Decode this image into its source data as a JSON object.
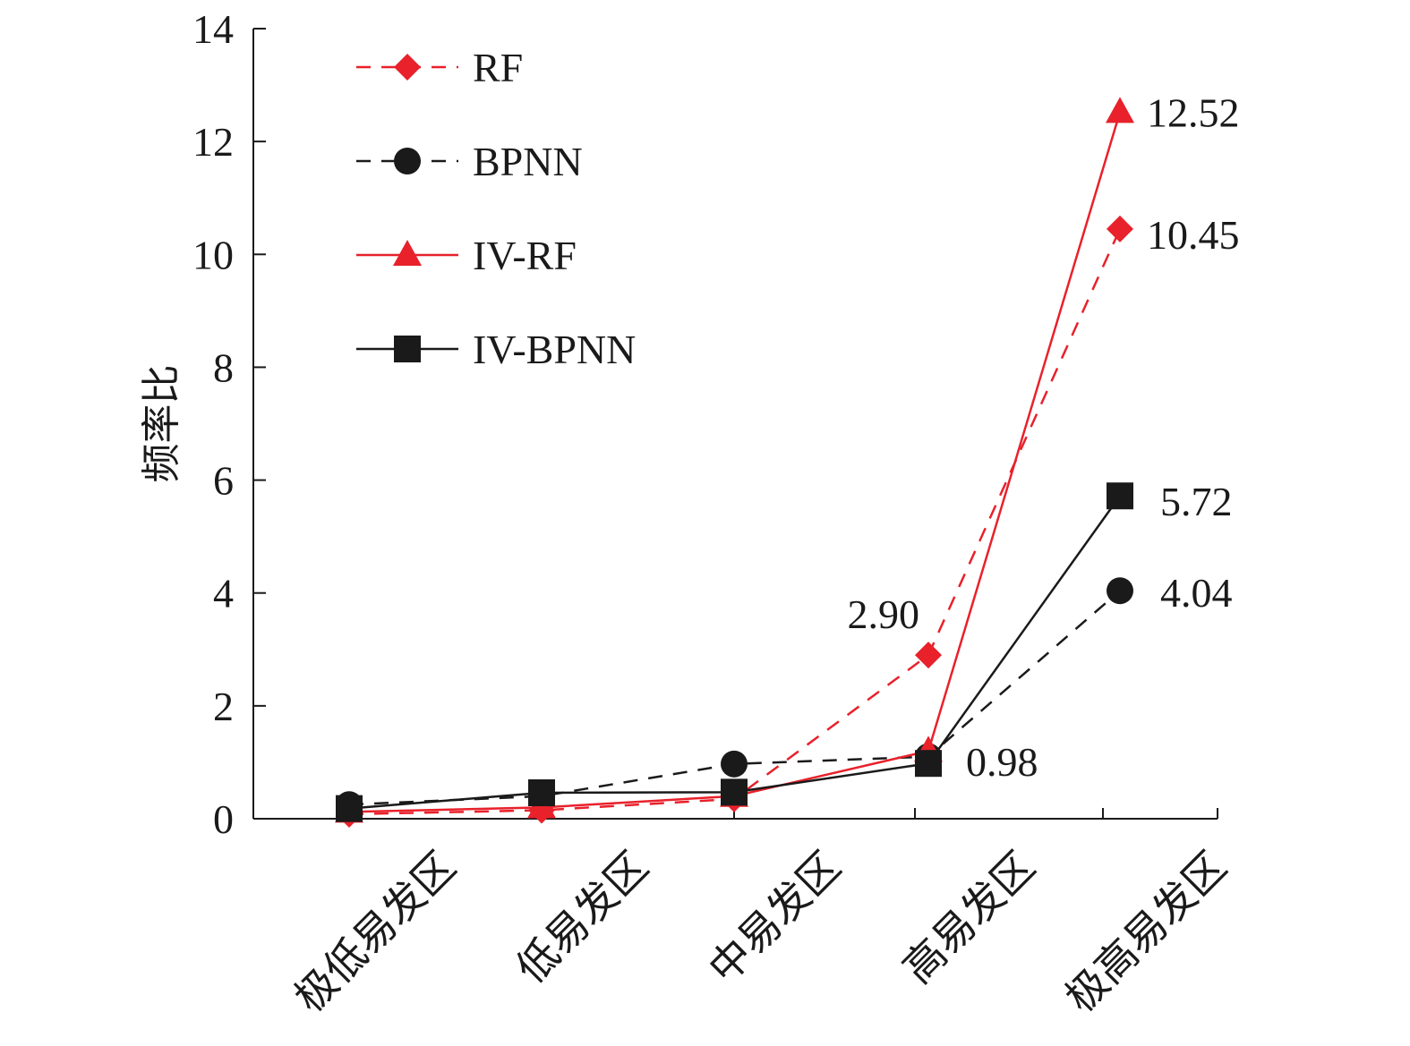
{
  "chart_data": {
    "type": "line",
    "title": "",
    "xlabel": "",
    "ylabel": "频率比",
    "ylim": [
      0,
      14
    ],
    "yticks": [
      0,
      2,
      4,
      6,
      8,
      10,
      12,
      14
    ],
    "categories": [
      "极低易发区",
      "低易发区",
      "中易发区",
      "高易发区",
      "极高易发区"
    ],
    "grid": false,
    "legend_position": "top-left",
    "series": [
      {
        "name": "RF",
        "values": [
          0.08,
          0.15,
          0.35,
          2.9,
          10.45
        ],
        "color": "#e8212b",
        "line_style": "dashed",
        "marker": "diamond"
      },
      {
        "name": "BPNN",
        "values": [
          0.25,
          0.4,
          0.97,
          1.1,
          4.04
        ],
        "color": "#1a1a1a",
        "line_style": "dashed",
        "marker": "circle"
      },
      {
        "name": "IV-RF",
        "values": [
          0.12,
          0.2,
          0.4,
          1.2,
          12.52
        ],
        "color": "#e8212b",
        "line_style": "solid",
        "marker": "triangle"
      },
      {
        "name": "IV-BPNN",
        "values": [
          0.18,
          0.46,
          0.47,
          0.98,
          5.72
        ],
        "color": "#1a1a1a",
        "line_style": "solid",
        "marker": "square"
      }
    ],
    "annotations": [
      {
        "text": "2.90",
        "series": "RF",
        "index": 3
      },
      {
        "text": "12.52",
        "series": "IV-RF",
        "index": 4
      },
      {
        "text": "10.45",
        "series": "RF",
        "index": 4
      },
      {
        "text": "5.72",
        "series": "IV-BPNN",
        "index": 4
      },
      {
        "text": "4.04",
        "series": "BPNN",
        "index": 4
      },
      {
        "text": "0.98",
        "series": "IV-BPNN",
        "index": 3
      }
    ]
  }
}
